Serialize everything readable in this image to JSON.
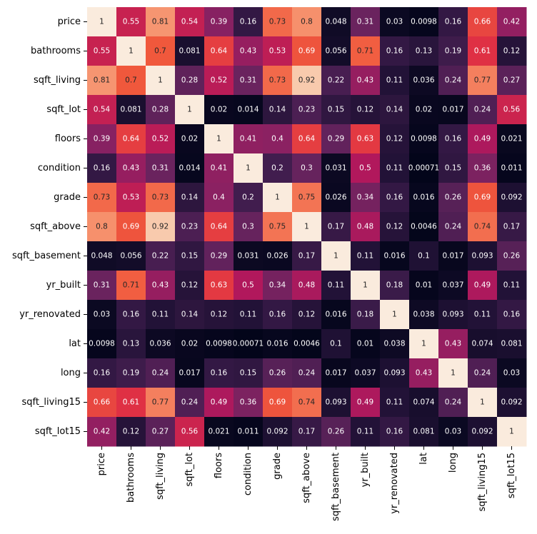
{
  "chart_data": {
    "type": "heatmap",
    "title": "",
    "xlabel": "",
    "ylabel": "",
    "colormap": "rocket",
    "value_range": [
      0,
      1
    ],
    "colorbar": false,
    "annotated": true,
    "labels": [
      "price",
      "bathrooms",
      "sqft_living",
      "sqft_lot",
      "floors",
      "condition",
      "grade",
      "sqft_above",
      "sqft_basement",
      "yr_built",
      "yr_renovated",
      "lat",
      "long",
      "sqft_living15",
      "sqft_lot15"
    ],
    "matrix": [
      [
        "1",
        "0.55",
        "0.81",
        "0.54",
        "0.39",
        "0.16",
        "0.73",
        "0.8",
        "0.048",
        "0.31",
        "0.03",
        "0.0098",
        "0.16",
        "0.66",
        "0.42"
      ],
      [
        "0.55",
        "1",
        "0.7",
        "0.081",
        "0.64",
        "0.43",
        "0.53",
        "0.69",
        "0.056",
        "0.71",
        "0.16",
        "0.13",
        "0.19",
        "0.61",
        "0.12"
      ],
      [
        "0.81",
        "0.7",
        "1",
        "0.28",
        "0.52",
        "0.31",
        "0.73",
        "0.92",
        "0.22",
        "0.43",
        "0.11",
        "0.036",
        "0.24",
        "0.77",
        "0.27"
      ],
      [
        "0.54",
        "0.081",
        "0.28",
        "1",
        "0.02",
        "0.014",
        "0.14",
        "0.23",
        "0.15",
        "0.12",
        "0.14",
        "0.02",
        "0.017",
        "0.24",
        "0.56"
      ],
      [
        "0.39",
        "0.64",
        "0.52",
        "0.02",
        "1",
        "0.41",
        "0.4",
        "0.64",
        "0.29",
        "0.63",
        "0.12",
        "0.0098",
        "0.16",
        "0.49",
        "0.021"
      ],
      [
        "0.16",
        "0.43",
        "0.31",
        "0.014",
        "0.41",
        "1",
        "0.2",
        "0.3",
        "0.031",
        "0.5",
        "0.11",
        "0.00071",
        "0.15",
        "0.36",
        "0.011"
      ],
      [
        "0.73",
        "0.53",
        "0.73",
        "0.14",
        "0.4",
        "0.2",
        "1",
        "0.75",
        "0.026",
        "0.34",
        "0.16",
        "0.016",
        "0.26",
        "0.69",
        "0.092"
      ],
      [
        "0.8",
        "0.69",
        "0.92",
        "0.23",
        "0.64",
        "0.3",
        "0.75",
        "1",
        "0.17",
        "0.48",
        "0.12",
        "0.0046",
        "0.24",
        "0.74",
        "0.17"
      ],
      [
        "0.048",
        "0.056",
        "0.22",
        "0.15",
        "0.29",
        "0.031",
        "0.026",
        "0.17",
        "1",
        "0.11",
        "0.016",
        "0.1",
        "0.017",
        "0.093",
        "0.26"
      ],
      [
        "0.31",
        "0.71",
        "0.43",
        "0.12",
        "0.63",
        "0.5",
        "0.34",
        "0.48",
        "0.11",
        "1",
        "0.18",
        "0.01",
        "0.037",
        "0.49",
        "0.11"
      ],
      [
        "0.03",
        "0.16",
        "0.11",
        "0.14",
        "0.12",
        "0.11",
        "0.16",
        "0.12",
        "0.016",
        "0.18",
        "1",
        "0.038",
        "0.093",
        "0.11",
        "0.16"
      ],
      [
        "0.0098",
        "0.13",
        "0.036",
        "0.02",
        "0.0098",
        "0.00071",
        "0.016",
        "0.0046",
        "0.1",
        "0.01",
        "0.038",
        "1",
        "0.43",
        "0.074",
        "0.081"
      ],
      [
        "0.16",
        "0.19",
        "0.24",
        "0.017",
        "0.16",
        "0.15",
        "0.26",
        "0.24",
        "0.017",
        "0.037",
        "0.093",
        "0.43",
        "1",
        "0.24",
        "0.03"
      ],
      [
        "0.66",
        "0.61",
        "0.77",
        "0.24",
        "0.49",
        "0.36",
        "0.69",
        "0.74",
        "0.093",
        "0.49",
        "0.11",
        "0.074",
        "0.24",
        "1",
        "0.092"
      ],
      [
        "0.42",
        "0.12",
        "0.27",
        "0.56",
        "0.021",
        "0.011",
        "0.092",
        "0.17",
        "0.26",
        "0.11",
        "0.16",
        "0.081",
        "0.03",
        "0.092",
        "1"
      ]
    ]
  }
}
